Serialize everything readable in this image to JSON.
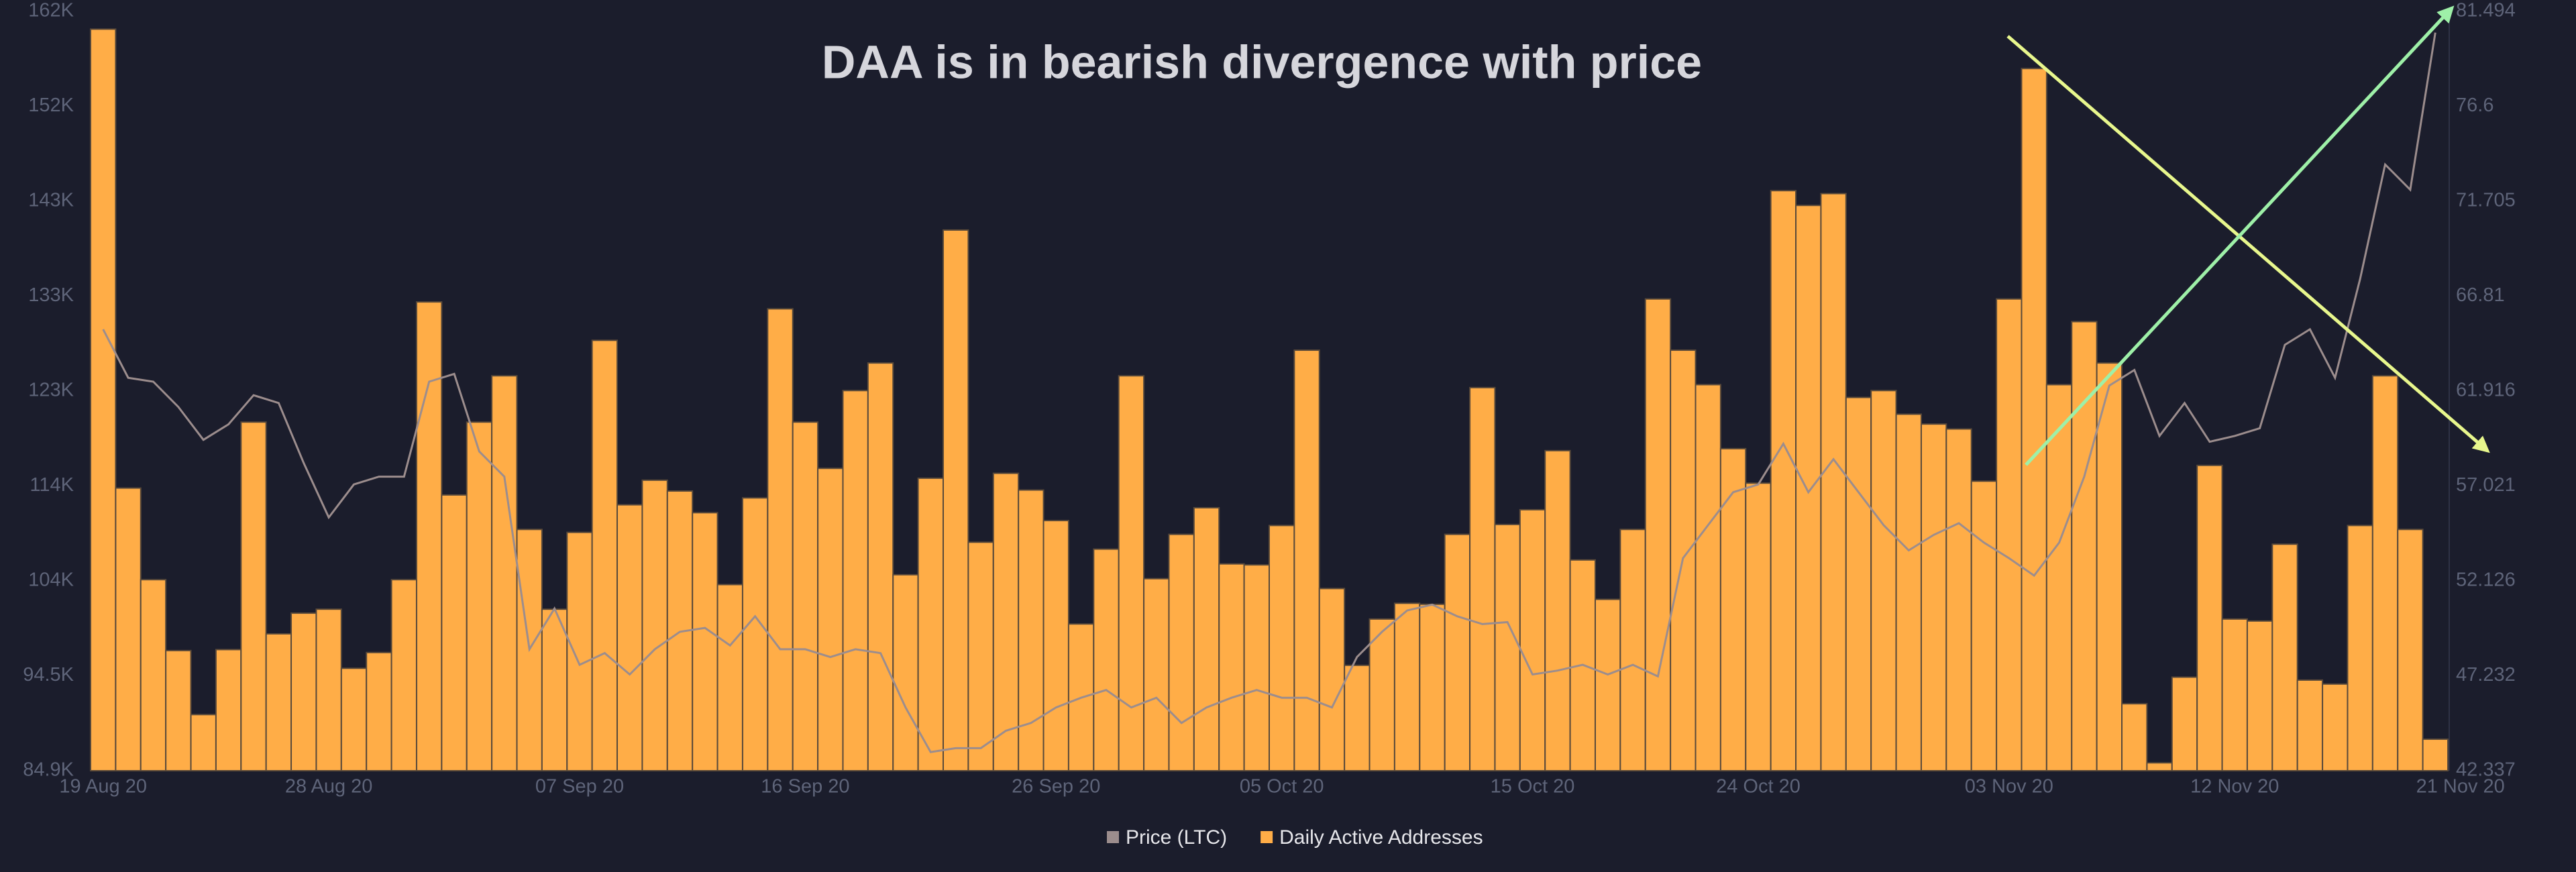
{
  "chart_data": {
    "type": "bar",
    "title": "DAA is in bearish divergence with price",
    "categories": [
      "19 Aug 20",
      null,
      null,
      null,
      null,
      null,
      null,
      null,
      null,
      "28 Aug 20",
      null,
      null,
      null,
      null,
      null,
      null,
      null,
      null,
      null,
      "07 Sep 20",
      null,
      null,
      null,
      null,
      null,
      null,
      null,
      null,
      "16 Sep 20",
      null,
      null,
      null,
      null,
      null,
      null,
      null,
      null,
      null,
      "26 Sep 20",
      null,
      null,
      null,
      null,
      null,
      null,
      null,
      null,
      "05 Oct 20",
      null,
      null,
      null,
      null,
      null,
      null,
      null,
      null,
      null,
      "15 Oct 20",
      null,
      null,
      null,
      null,
      null,
      null,
      null,
      null,
      "24 Oct 20",
      null,
      null,
      null,
      null,
      null,
      null,
      null,
      null,
      null,
      "03 Nov 20",
      null,
      null,
      null,
      null,
      null,
      null,
      null,
      null,
      "12 Nov 20",
      null,
      null,
      null,
      null,
      null,
      null,
      null,
      null
    ],
    "x_axis_end_label": "21 Nov 20",
    "series": [
      {
        "name": "Price (LTC)",
        "type": "line",
        "axis": "y2",
        "color": "#9c8d8d",
        "values": [
          65.1,
          62.6,
          62.4,
          61.1,
          59.4,
          60.2,
          61.7,
          61.3,
          58.2,
          55.4,
          57.1,
          57.5,
          57.5,
          62.4,
          62.8,
          58.8,
          57.5,
          48.6,
          50.7,
          47.8,
          48.4,
          47.3,
          48.6,
          49.5,
          49.7,
          48.8,
          50.3,
          48.6,
          48.6,
          48.2,
          48.6,
          48.4,
          45.6,
          43.3,
          43.5,
          43.5,
          44.4,
          44.8,
          45.6,
          46.1,
          46.5,
          45.6,
          46.1,
          44.8,
          45.6,
          46.1,
          46.5,
          46.1,
          46.1,
          45.6,
          48.2,
          49.5,
          50.6,
          50.9,
          50.3,
          49.9,
          50.0,
          47.3,
          47.5,
          47.8,
          47.3,
          47.8,
          47.2,
          53.3,
          55.0,
          56.7,
          57.1,
          59.2,
          56.7,
          58.4,
          56.7,
          55.0,
          53.7,
          54.5,
          55.1,
          54.1,
          53.3,
          52.4,
          54.1,
          57.5,
          62.2,
          63.0,
          59.6,
          61.3,
          59.3,
          59.6,
          60.0,
          64.3,
          65.1,
          62.6,
          67.7,
          73.6,
          72.3,
          80.4
        ]
      },
      {
        "name": "Daily Active Addresses",
        "type": "bar",
        "color": "#ffad47",
        "values": [
          160200,
          113600,
          104300,
          97100,
          90600,
          97200,
          120300,
          98800,
          100900,
          101300,
          95300,
          96900,
          104300,
          132500,
          112900,
          120300,
          125000,
          109400,
          101300,
          109100,
          128600,
          111900,
          114400,
          113300,
          111100,
          103800,
          112600,
          131800,
          120300,
          115600,
          123500,
          126300,
          104800,
          114600,
          139800,
          108100,
          115100,
          113400,
          110300,
          99800,
          107400,
          125000,
          104400,
          108900,
          111600,
          105900,
          105800,
          109800,
          127600,
          103400,
          95600,
          100300,
          101900,
          101800,
          108900,
          123800,
          109900,
          111400,
          117400,
          106300,
          102300,
          109400,
          132800,
          127600,
          124100,
          117600,
          114100,
          143800,
          142300,
          143500,
          122800,
          123500,
          121100,
          120100,
          119600,
          114300,
          132800,
          156200,
          124100,
          130500,
          126300,
          91700,
          85700,
          94400,
          115900,
          100300,
          100100,
          107900,
          94100,
          93700,
          109800,
          125000,
          109400,
          88100
        ]
      }
    ],
    "ylim": [
      84900,
      162000
    ],
    "yticks": [
      {
        "value": 84900,
        "label": "84.9K"
      },
      {
        "value": 94537.5,
        "label": "94.5K"
      },
      {
        "value": 104175,
        "label": "104K"
      },
      {
        "value": 113812.5,
        "label": "114K"
      },
      {
        "value": 123450,
        "label": "123K"
      },
      {
        "value": 133087.5,
        "label": "133K"
      },
      {
        "value": 142725,
        "label": "143K"
      },
      {
        "value": 152362.5,
        "label": "152K"
      },
      {
        "value": 162000,
        "label": "162K"
      }
    ],
    "y2lim": [
      42.337,
      81.494
    ],
    "y2ticks": [
      42.337,
      47.232,
      52.126,
      57.021,
      61.916,
      66.81,
      71.705,
      76.6,
      81.494
    ],
    "grid": false,
    "legend": "bottom"
  }
}
